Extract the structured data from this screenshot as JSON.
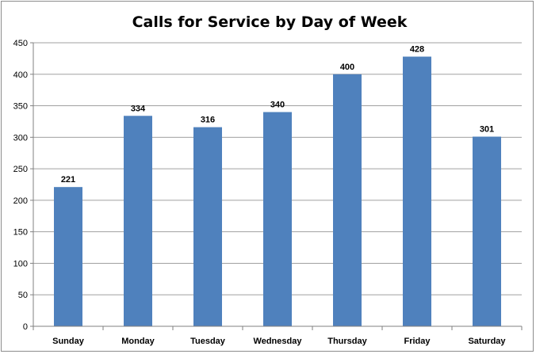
{
  "chart_data": {
    "type": "bar",
    "title": "Calls for Service by Day of Week",
    "categories": [
      "Sunday",
      "Monday",
      "Tuesday",
      "Wednesday",
      "Thursday",
      "Friday",
      "Saturday"
    ],
    "values": [
      221,
      334,
      316,
      340,
      400,
      428,
      301
    ],
    "data_labels": [
      "221",
      "334",
      "316",
      "340",
      "400",
      "428",
      "301"
    ],
    "y_ticks": [
      0,
      50,
      100,
      150,
      200,
      250,
      300,
      350,
      400,
      450
    ],
    "y_tick_labels": [
      "0",
      "50",
      "100",
      "150",
      "200",
      "250",
      "300",
      "350",
      "400",
      "450"
    ],
    "ylim": [
      0,
      450
    ],
    "xlabel": "",
    "ylabel": "",
    "grid": true,
    "legend": "none",
    "bar_color": "#4f81bd",
    "grid_color": "#a0a0a0"
  }
}
